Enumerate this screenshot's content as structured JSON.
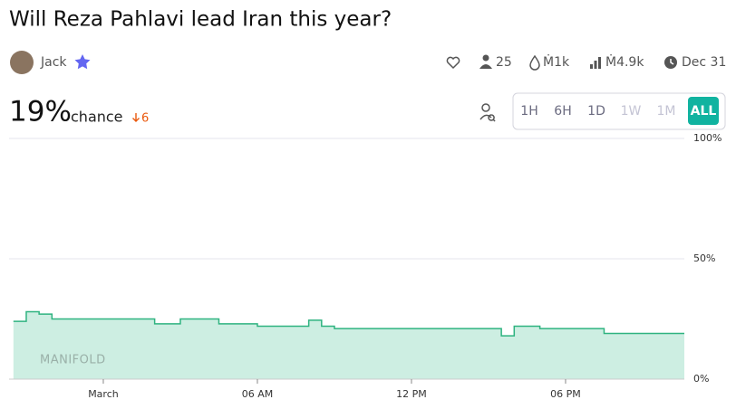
{
  "header": {
    "title": "Will Reza Pahlavi lead Iran this year?",
    "creator": "Jack",
    "stats": {
      "traders": "25",
      "liquidity": "Ṁ1k",
      "volume": "Ṁ4.9k",
      "close_date": "Dec 31"
    },
    "probability": "19%",
    "probability_label": "chance",
    "change": "6"
  },
  "time_buttons": [
    {
      "label": "1H"
    },
    {
      "label": "6H"
    },
    {
      "label": "1D"
    },
    {
      "label": "1W",
      "disabled": true
    },
    {
      "label": "1M",
      "disabled": true
    },
    {
      "label": "ALL",
      "active": true
    }
  ],
  "chart_data": {
    "type": "step-line",
    "watermark": "MANIFOLD",
    "categories": [
      null,
      null,
      null,
      null,
      null,
      null,
      null,
      "March",
      null,
      null,
      null,
      null,
      null,
      null,
      null,
      null,
      null,
      null,
      null,
      "06 AM",
      null,
      null,
      null,
      null,
      null,
      null,
      null,
      null,
      null,
      null,
      null,
      "12 PM",
      null,
      null,
      null,
      null,
      null,
      null,
      null,
      null,
      null,
      null,
      null,
      "06 PM",
      null,
      null,
      null,
      null,
      null,
      null,
      null,
      null,
      null
    ],
    "values": [
      24,
      28,
      27,
      25,
      25,
      25,
      25,
      25,
      25,
      25,
      25,
      23,
      23,
      25,
      25,
      25,
      23,
      23,
      23,
      22,
      22,
      22,
      22,
      24.5,
      22,
      21,
      21,
      21,
      21,
      21,
      21,
      21,
      21,
      21,
      21,
      21,
      21,
      21,
      18,
      22,
      22,
      21,
      21,
      21,
      21,
      21,
      19,
      19,
      19,
      19,
      19,
      19,
      19
    ],
    "color": "#2fb380",
    "fill": "#cdeee2",
    "ylim": [
      0,
      100
    ],
    "yticks": [
      {
        "value": 0,
        "label": "0%"
      },
      {
        "value": 50,
        "label": "50%"
      },
      {
        "value": 100,
        "label": "100%"
      }
    ],
    "grid": true
  }
}
